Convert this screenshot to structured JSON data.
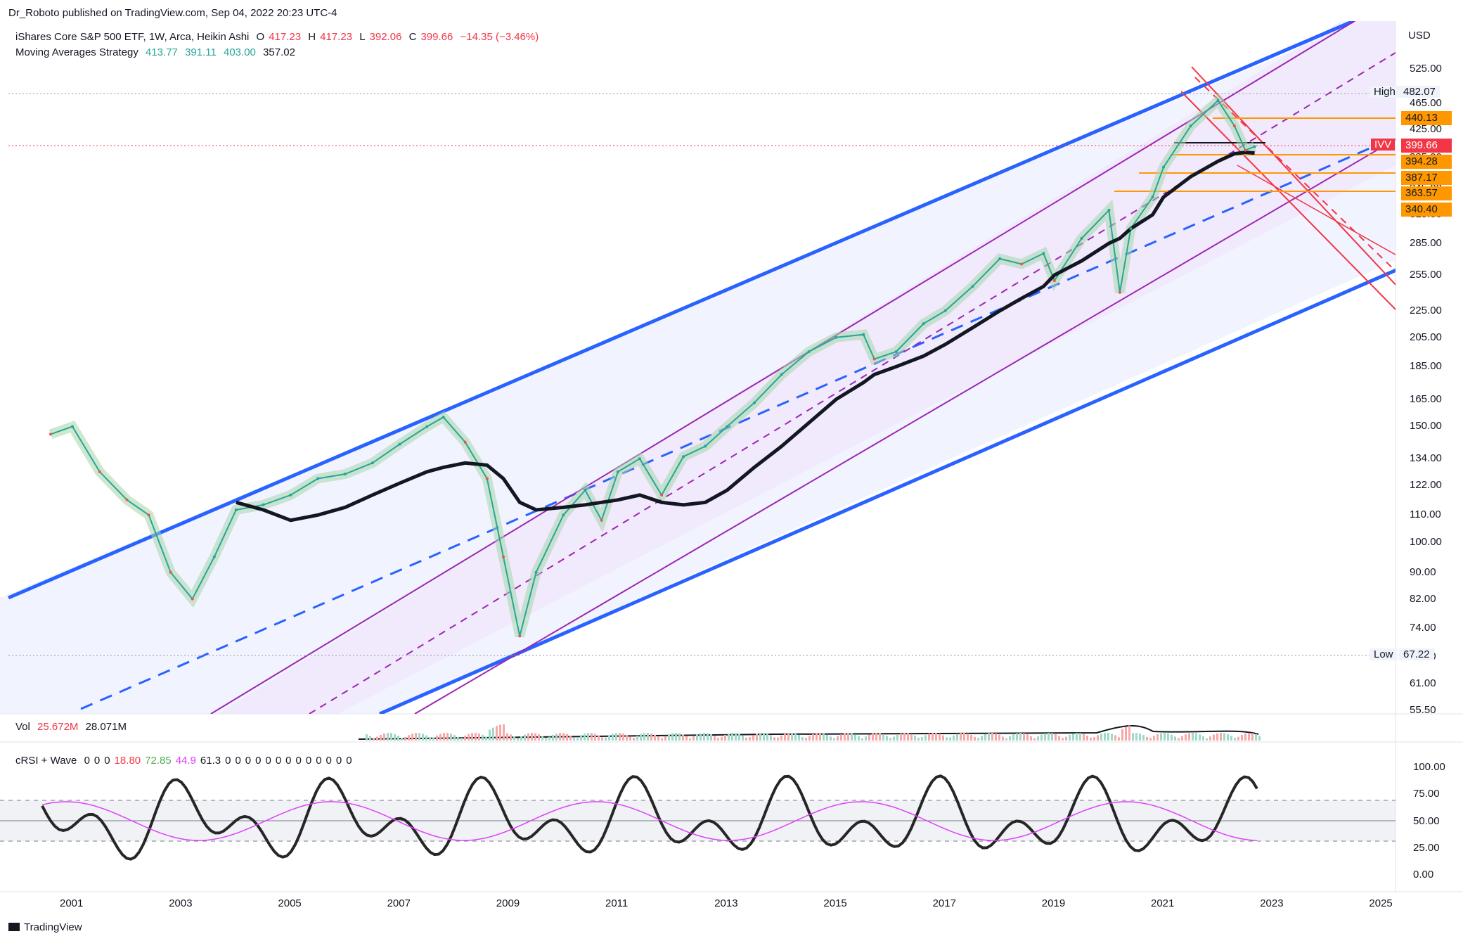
{
  "header": {
    "published_line": "Dr_Roboto published on TradingView.com, Sep 04, 2022 20:23 UTC-4"
  },
  "legend": {
    "symbol_line": "iShares Core S&P 500 ETF, 1W, Arca, Heikin Ashi",
    "ohlc": [
      {
        "label": "O",
        "value": "417.23"
      },
      {
        "label": "H",
        "value": "417.23"
      },
      {
        "label": "L",
        "value": "392.06"
      },
      {
        "label": "C",
        "value": "399.66"
      }
    ],
    "change": "−14.35 (−3.46%)",
    "ma_label": "Moving Averages Strategy",
    "ma_values": [
      "413.77",
      "391.11",
      "403.00",
      "357.02"
    ]
  },
  "price_axis": {
    "unit": "USD",
    "ticks": [
      "525.00",
      "465.00",
      "425.00",
      "385.00",
      "345.00",
      "315.00",
      "285.00",
      "255.00",
      "225.00",
      "205.00",
      "185.00",
      "165.00",
      "150.00",
      "134.00",
      "122.00",
      "110.00",
      "100.00",
      "90.00",
      "82.00",
      "74.00",
      "67.00",
      "61.00",
      "55.50"
    ],
    "high_label": "High",
    "high_value": "482.07",
    "low_label": "Low",
    "low_value": "67.22",
    "symbol_tag": "IVV",
    "tags": [
      {
        "value": "440.13",
        "kind": "orange"
      },
      {
        "value": "399.66",
        "kind": "red"
      },
      {
        "value": "394.28",
        "kind": "orange"
      },
      {
        "value": "387.17",
        "kind": "orange"
      },
      {
        "value": "363.57",
        "kind": "orange"
      },
      {
        "value": "340.40",
        "kind": "orange"
      }
    ]
  },
  "volume": {
    "label": "Vol",
    "value1": "25.672M",
    "value2": "28.071M"
  },
  "crsi": {
    "label": "cRSI + Wave",
    "values": [
      "0",
      "0",
      "0",
      "18.80",
      "72.85",
      "44.9",
      "61.3",
      "0",
      "0",
      "0",
      "0",
      "0",
      "0",
      "0",
      "0",
      "0",
      "0",
      "0",
      "0",
      "0"
    ],
    "ticks": [
      "100.00",
      "75.00",
      "50.00",
      "25.00",
      "0.00"
    ]
  },
  "time_axis": [
    "2001",
    "2003",
    "2005",
    "2007",
    "2009",
    "2011",
    "2013",
    "2015",
    "2017",
    "2019",
    "2021",
    "2023",
    "2025"
  ],
  "footer": {
    "brand": "TradingView"
  },
  "colors": {
    "blue_channel": "#2962ff",
    "purple_channel": "#9c27b0",
    "ma_black": "#131722",
    "bull_green": "#4caf50",
    "bear_red": "#f44336",
    "orange_level": "#ff9800"
  },
  "chart_data": {
    "type": "line",
    "title": "",
    "scale": "log",
    "ylim": [
      55.5,
      560
    ],
    "x": [
      2000.6,
      2001.0,
      2001.5,
      2002.0,
      2002.4,
      2002.8,
      2003.2,
      2003.6,
      2004.0,
      2004.5,
      2005.0,
      2005.5,
      2006.0,
      2006.5,
      2007.0,
      2007.5,
      2007.8,
      2008.2,
      2008.6,
      2008.9,
      2009.2,
      2009.5,
      2010.0,
      2010.4,
      2010.7,
      2011.0,
      2011.4,
      2011.8,
      2012.2,
      2012.6,
      2013.0,
      2013.5,
      2014.0,
      2014.5,
      2015.0,
      2015.5,
      2015.7,
      2016.1,
      2016.6,
      2017.0,
      2017.5,
      2018.0,
      2018.4,
      2018.8,
      2019.0,
      2019.5,
      2020.0,
      2020.2,
      2020.4,
      2020.8,
      2021.0,
      2021.5,
      2022.0,
      2022.3,
      2022.5,
      2022.67
    ],
    "series": [
      {
        "values": [
          146,
          150,
          128,
          116,
          110,
          90,
          82,
          95,
          112,
          114,
          118,
          125,
          127,
          132,
          141,
          150,
          155,
          142,
          125,
          95,
          72,
          90,
          110,
          120,
          108,
          128,
          134,
          118,
          135,
          140,
          150,
          163,
          180,
          195,
          205,
          207,
          190,
          195,
          215,
          225,
          245,
          270,
          265,
          275,
          250,
          290,
          320,
          240,
          300,
          335,
          372,
          430,
          470,
          430,
          395,
          400
        ]
      },
      {
        "values": [
          null,
          null,
          null,
          null,
          null,
          null,
          null,
          null,
          115,
          112,
          108,
          110,
          113,
          118,
          123,
          128,
          130,
          132,
          131,
          125,
          115,
          112,
          113,
          114,
          115,
          116,
          118,
          115,
          114,
          115,
          120,
          130,
          140,
          152,
          165,
          175,
          180,
          185,
          192,
          200,
          212,
          225,
          235,
          245,
          255,
          268,
          285,
          290,
          300,
          315,
          335,
          360,
          380,
          390,
          392,
          391
        ]
      }
    ]
  }
}
